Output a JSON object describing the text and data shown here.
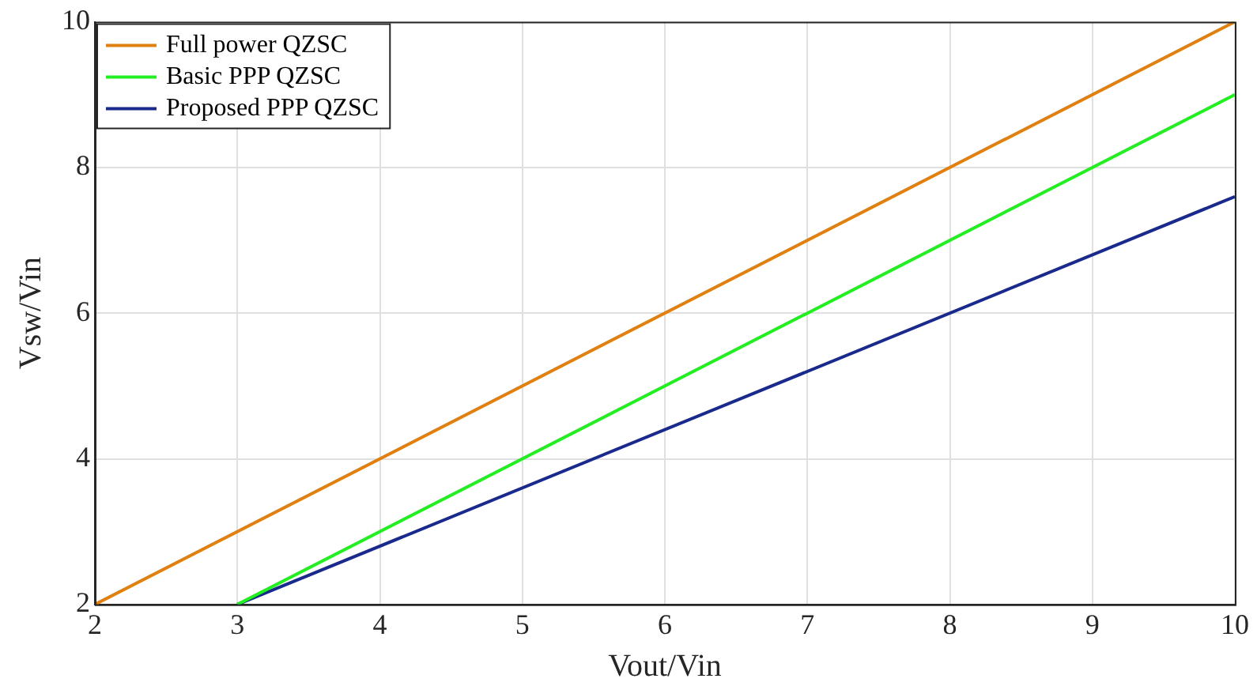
{
  "chart_data": {
    "type": "line",
    "xlabel": "Vout/Vin",
    "ylabel": "Vsw/Vin",
    "xlim": [
      2,
      10
    ],
    "xticks": [
      2,
      3,
      4,
      5,
      6,
      7,
      8,
      9,
      10
    ],
    "ylim": [
      2,
      10
    ],
    "yticks": [
      2,
      4,
      6,
      8,
      10
    ],
    "grid": true,
    "legend": "top left",
    "marker": "none",
    "line_style": "solid",
    "series": [
      {
        "name": "Full power QZSC",
        "color": "#e08010",
        "x": [
          2,
          10
        ],
        "values": [
          2,
          10
        ]
      },
      {
        "name": "Basic PPP QZSC",
        "color": "#22ee22",
        "x": [
          3,
          10
        ],
        "values": [
          2,
          9
        ]
      },
      {
        "name": "Proposed PPP QZSC",
        "color": "#1a2a8c",
        "x": [
          3,
          10
        ],
        "values": [
          2,
          7.6
        ]
      }
    ]
  }
}
